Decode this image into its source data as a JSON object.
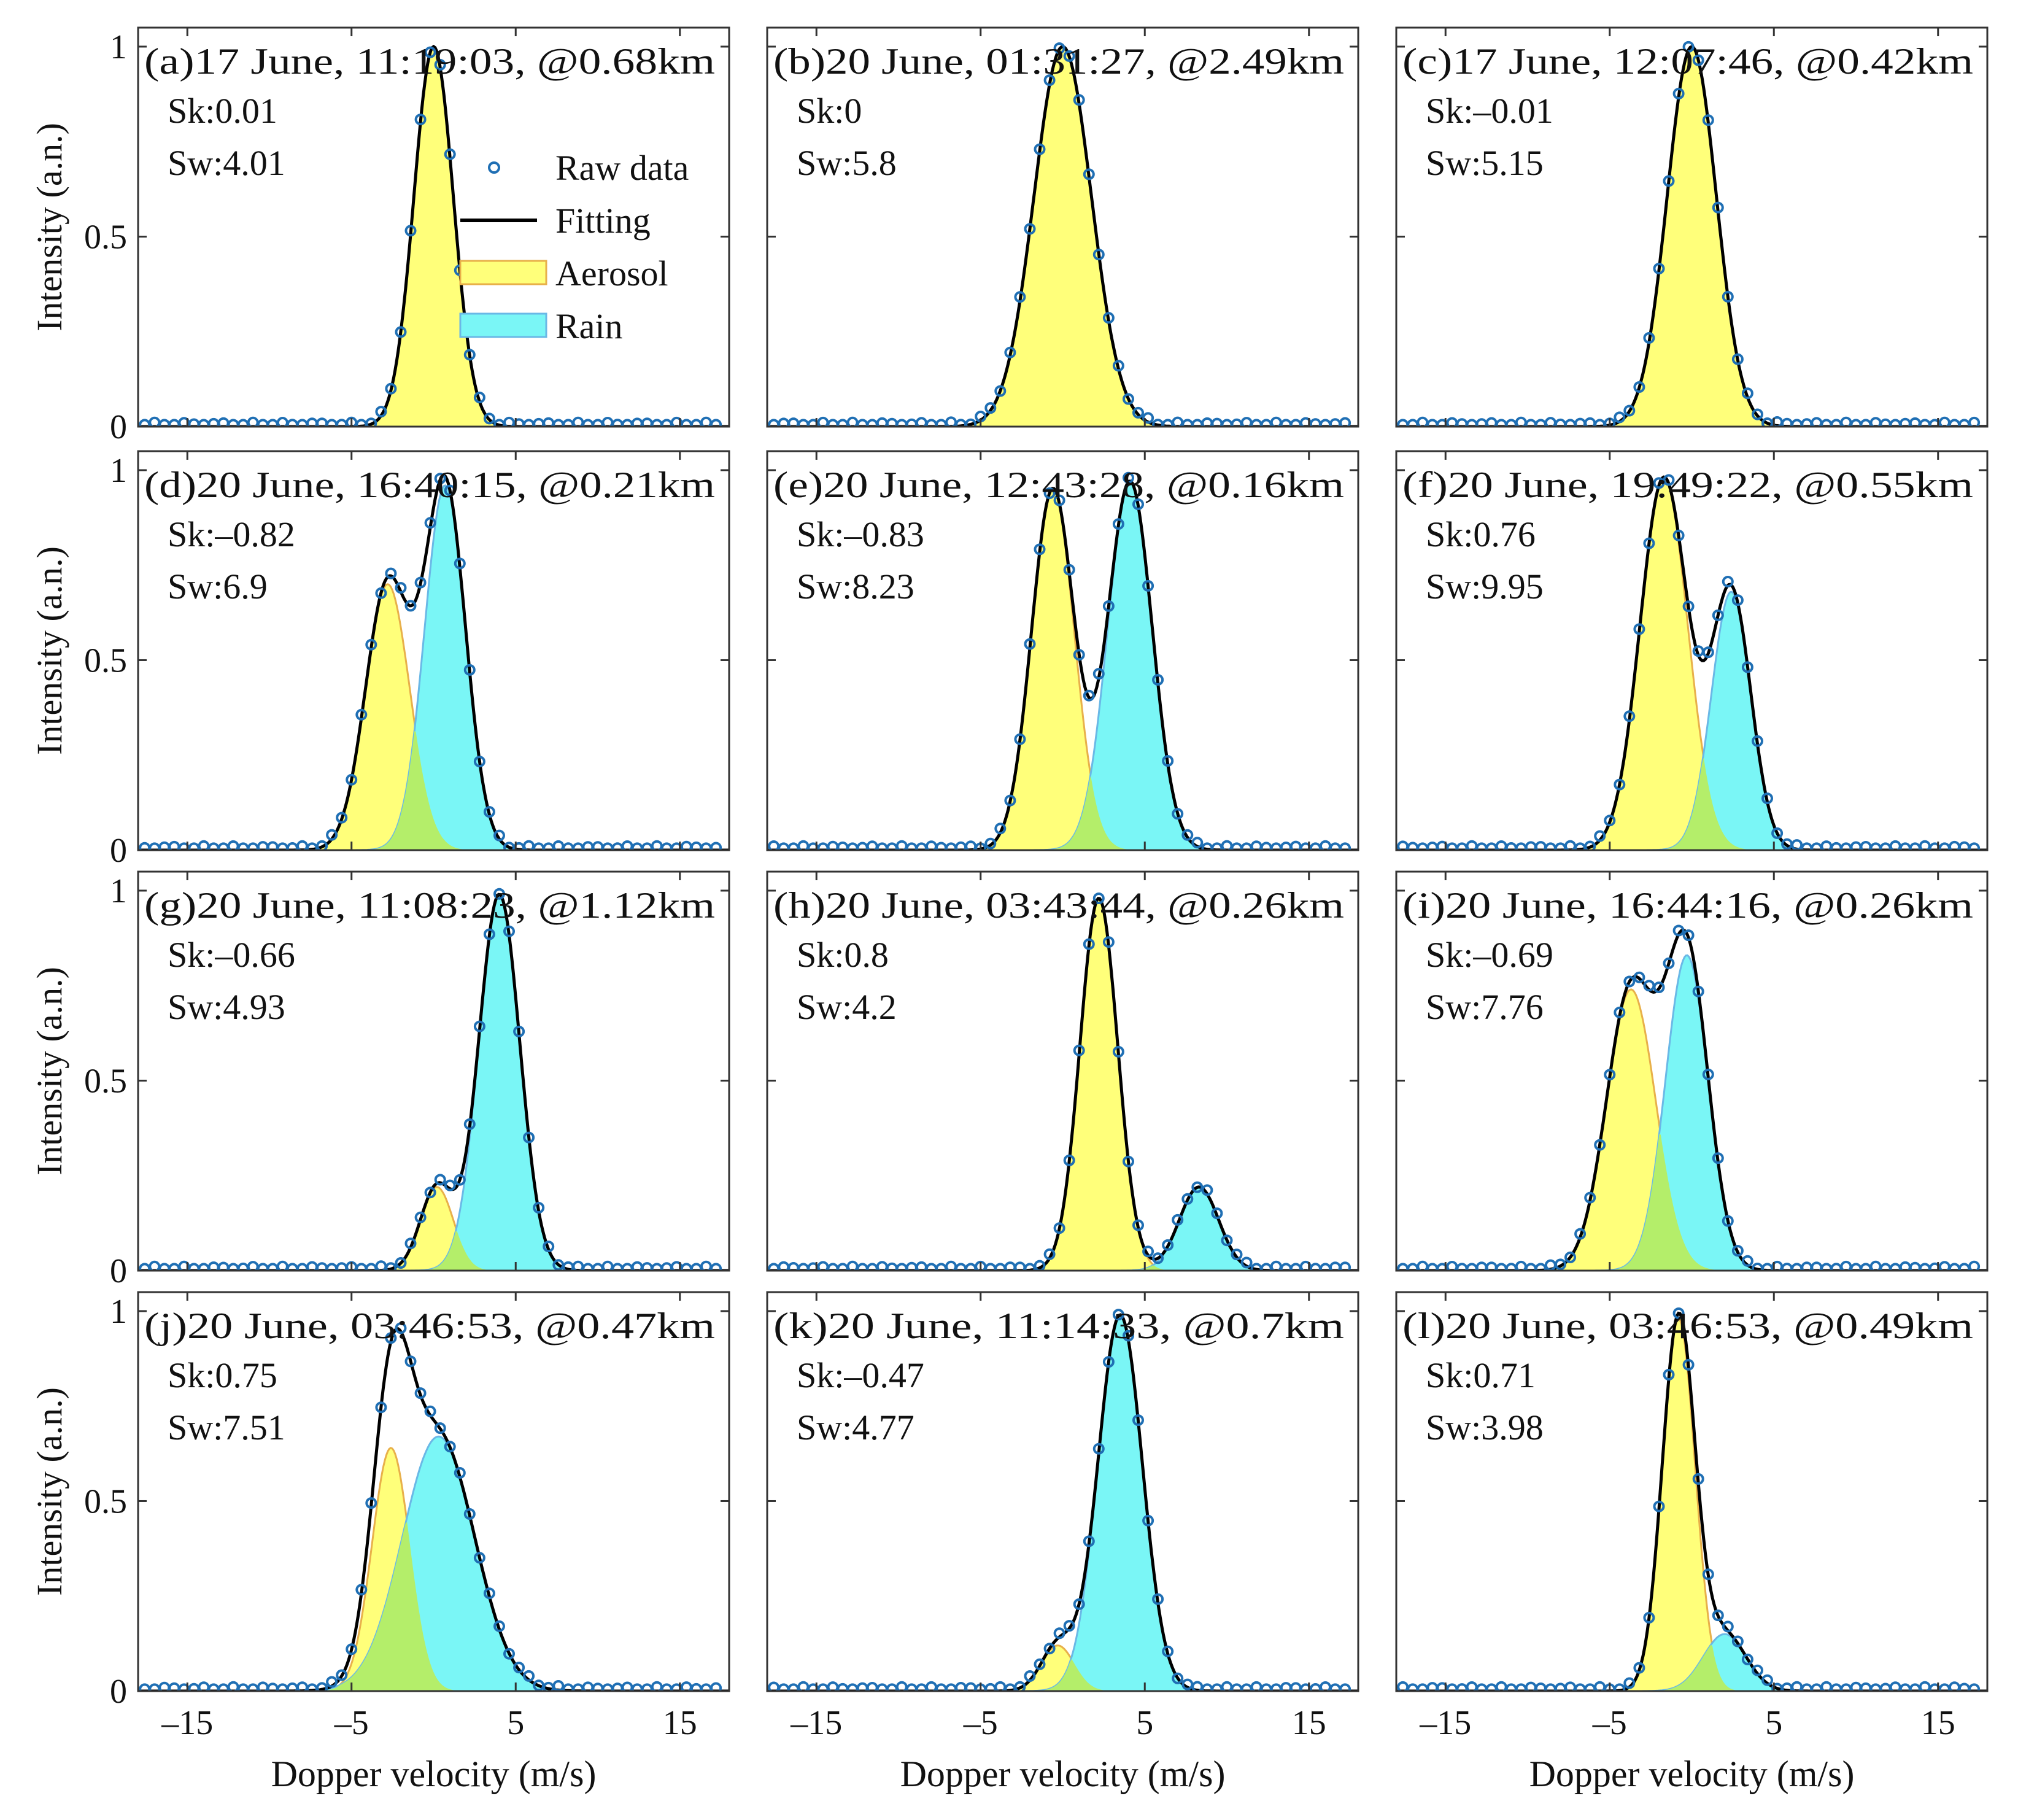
{
  "figure": {
    "x_axis_label": "Dopper velocity (m/s)",
    "y_axis_label": "Intensity (a.n.)"
  },
  "legend": {
    "raw": "Raw data",
    "fit": "Fitting",
    "aerosol": "Aerosol",
    "rain": "Rain"
  },
  "colors": {
    "raw_marker": "#1f6fb4",
    "fit_line": "#000000",
    "aerosol_fill": "#ffff7a",
    "aerosol_edge": "#e8b04a",
    "rain_fill": "#7af6f6",
    "rain_edge": "#6ab8e6",
    "overlap_fill": "#b4ee6a"
  },
  "chart_data": [
    {
      "id": "a",
      "type": "line",
      "title": "(a)17 June, 11:19:03, @0.68km",
      "sk": "Sk:0.01",
      "sw": "Sw:4.01",
      "xlim": [
        -18,
        18
      ],
      "ylim": [
        0,
        1.05
      ],
      "xticks": [
        -15,
        -5,
        5,
        15
      ],
      "yticks": [
        0,
        0.5,
        1
      ],
      "aerosol": {
        "amp": 1.0,
        "mu": 0.0,
        "sigma": 1.2
      },
      "rain": null,
      "legend": true
    },
    {
      "id": "b",
      "type": "line",
      "title": "(b)20 June, 01:31:27, @2.49km",
      "sk": "Sk:0",
      "sw": "Sw:5.8",
      "xlim": [
        -18,
        18
      ],
      "ylim": [
        0,
        1.05
      ],
      "xticks": [
        -15,
        -5,
        5,
        15
      ],
      "yticks": [
        0,
        0.5,
        1
      ],
      "aerosol": {
        "amp": 1.0,
        "mu": 0.0,
        "sigma": 1.75
      },
      "rain": null,
      "legend": false
    },
    {
      "id": "c",
      "type": "line",
      "title": "(c)17 June, 12:07:46, @0.42km",
      "sk": "Sk:–0.01",
      "sw": "Sw:5.15",
      "xlim": [
        -18,
        18
      ],
      "ylim": [
        0,
        1.05
      ],
      "xticks": [
        -15,
        -5,
        5,
        15
      ],
      "yticks": [
        0,
        0.5,
        1
      ],
      "aerosol": {
        "amp": 1.0,
        "mu": 0.0,
        "sigma": 1.5
      },
      "rain": null,
      "legend": false
    },
    {
      "id": "d",
      "type": "line",
      "title": "(d)20 June, 16:40:15, @0.21km",
      "sk": "Sk:–0.82",
      "sw": "Sw:6.9",
      "xlim": [
        -18,
        18
      ],
      "ylim": [
        0,
        1.05
      ],
      "xticks": [
        -15,
        -5,
        5,
        15
      ],
      "yticks": [
        0,
        0.5,
        1
      ],
      "aerosol": {
        "amp": 0.7,
        "mu": -2.8,
        "sigma": 1.35
      },
      "rain": {
        "amp": 0.96,
        "mu": 0.7,
        "sigma": 1.25
      },
      "legend": false
    },
    {
      "id": "e",
      "type": "line",
      "title": "(e)20 June, 12:43:28, @0.16km",
      "sk": "Sk:–0.83",
      "sw": "Sw:8.23",
      "xlim": [
        -18,
        18
      ],
      "ylim": [
        0,
        1.05
      ],
      "xticks": [
        -15,
        -5,
        5,
        15
      ],
      "yticks": [
        0,
        0.5,
        1
      ],
      "aerosol": {
        "amp": 0.95,
        "mu": -0.6,
        "sigma": 1.3
      },
      "rain": {
        "amp": 0.97,
        "mu": 4.1,
        "sigma": 1.35
      },
      "legend": false
    },
    {
      "id": "f",
      "type": "line",
      "title": "(f)20 June, 19:49:22, @0.55km",
      "sk": "Sk:0.76",
      "sw": "Sw:9.95",
      "xlim": [
        -18,
        18
      ],
      "ylim": [
        0,
        1.05
      ],
      "xticks": [
        -15,
        -5,
        5,
        15
      ],
      "yticks": [
        0,
        0.5,
        1
      ],
      "aerosol": {
        "amp": 0.98,
        "mu": -1.7,
        "sigma": 1.45
      },
      "rain": {
        "amp": 0.68,
        "mu": 2.4,
        "sigma": 1.2
      },
      "legend": false
    },
    {
      "id": "g",
      "type": "line",
      "title": "(g)20 June, 11:08:23, @1.12km",
      "sk": "Sk:–0.66",
      "sw": "Sw:4.93",
      "xlim": [
        -18,
        18
      ],
      "ylim": [
        0,
        1.05
      ],
      "xticks": [
        -15,
        -5,
        5,
        15
      ],
      "yticks": [
        0,
        0.5,
        1
      ],
      "aerosol": {
        "amp": 0.22,
        "mu": 0.2,
        "sigma": 1.0
      },
      "rain": {
        "amp": 0.99,
        "mu": 4.0,
        "sigma": 1.25
      },
      "legend": false
    },
    {
      "id": "h",
      "type": "line",
      "title": "(h)20 June, 03:43:44, @0.26km",
      "sk": "Sk:0.8",
      "sw": "Sw:4.2",
      "xlim": [
        -18,
        18
      ],
      "ylim": [
        0,
        1.05
      ],
      "xticks": [
        -15,
        -5,
        5,
        15
      ],
      "yticks": [
        0,
        0.5,
        1
      ],
      "aerosol": {
        "amp": 0.98,
        "mu": 2.2,
        "sigma": 1.15
      },
      "rain": {
        "amp": 0.22,
        "mu": 8.3,
        "sigma": 1.2
      },
      "legend": false
    },
    {
      "id": "i",
      "type": "line",
      "title": "(i)20 June, 16:44:16, @0.26km",
      "sk": "Sk:–0.69",
      "sw": "Sw:7.76",
      "xlim": [
        -18,
        18
      ],
      "ylim": [
        0,
        1.05
      ],
      "xticks": [
        -15,
        -5,
        5,
        15
      ],
      "yticks": [
        0,
        0.5,
        1
      ],
      "aerosol": {
        "amp": 0.74,
        "mu": -3.7,
        "sigma": 1.5
      },
      "rain": {
        "amp": 0.83,
        "mu": -0.3,
        "sigma": 1.3
      },
      "legend": false
    },
    {
      "id": "j",
      "type": "line",
      "title": "(j)20 June, 03:46:53, @0.47km",
      "sk": "Sk:0.75",
      "sw": "Sw:7.51",
      "xlim": [
        -18,
        18
      ],
      "ylim": [
        0,
        1.05
      ],
      "xticks": [
        -15,
        -5,
        5,
        15
      ],
      "yticks": [
        0,
        0.5,
        1
      ],
      "aerosol": {
        "amp": 0.64,
        "mu": -2.6,
        "sigma": 1.15
      },
      "rain": {
        "amp": 0.67,
        "mu": 0.3,
        "sigma": 2.2
      },
      "legend": false
    },
    {
      "id": "k",
      "type": "line",
      "title": "(k)20 June, 11:14:33, @0.7km",
      "sk": "Sk:–0.47",
      "sw": "Sw:4.77",
      "xlim": [
        -18,
        18
      ],
      "ylim": [
        0,
        1.05
      ],
      "xticks": [
        -15,
        -5,
        5,
        15
      ],
      "yticks": [
        0,
        0.5,
        1
      ],
      "aerosol": {
        "amp": 0.12,
        "mu": -0.3,
        "sigma": 1.0
      },
      "rain": {
        "amp": 0.99,
        "mu": 3.5,
        "sigma": 1.35
      },
      "legend": false
    },
    {
      "id": "l",
      "type": "line",
      "title": "(l)20 June, 03:46:53, @0.49km",
      "sk": "Sk:0.71",
      "sw": "Sw:3.98",
      "xlim": [
        -18,
        18
      ],
      "ylim": [
        0,
        1.05
      ],
      "xticks": [
        -15,
        -5,
        5,
        15
      ],
      "yticks": [
        0,
        0.5,
        1
      ],
      "aerosol": {
        "amp": 0.98,
        "mu": -0.8,
        "sigma": 1.0
      },
      "rain": {
        "amp": 0.15,
        "mu": 2.0,
        "sigma": 1.3
      },
      "legend": false
    }
  ]
}
